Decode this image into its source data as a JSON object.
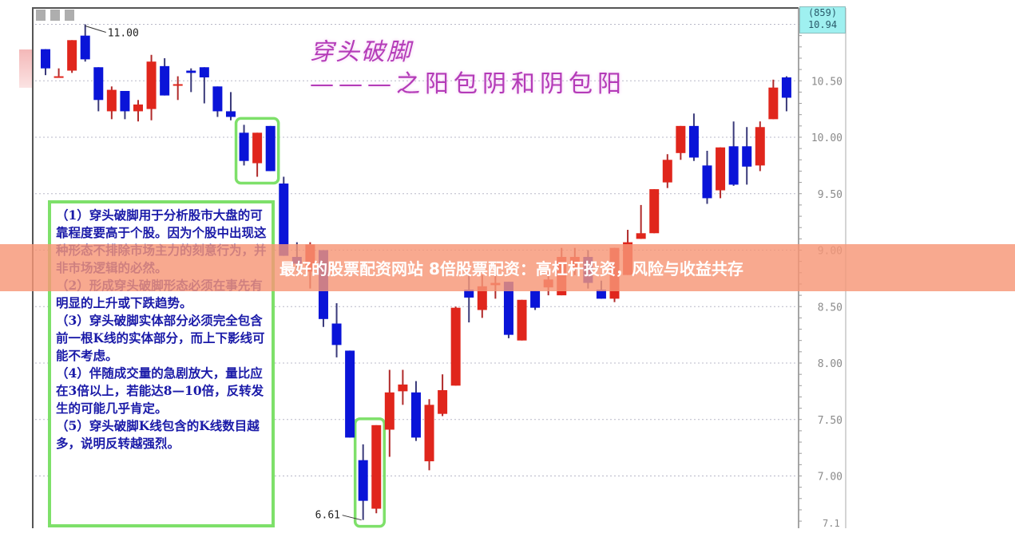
{
  "banner": {
    "text": "最好的股票配资网站 8倍股票配资：高杠杆投资，风险与收益共存"
  },
  "title": {
    "line1": "穿头破脚",
    "line2": "———之阳包阴和阴包阳"
  },
  "notes": [
    "（1）穿头破脚用于分析股市大盘的可靠程度要高于个股。因为个股中出现这种形态不排除市场主力的刻意行为，并非市场逻辑的必然。",
    "（2）形成穿头破脚形态必须在事先有明显的上升或下跌趋势。",
    "（3）穿头破脚实体部分必须完全包含前一根K线的实体部分，而上下影线可能不考虑。",
    "（4）伴随成交量的急剧放大，量比应在3倍以上，若能达8—10倍，反转发生的可能几乎肯定。",
    "（5）穿头破脚K线包含的K线数目越多，说明反转越强烈。"
  ],
  "price_box": {
    "line1": "(859)",
    "line2": "10.94"
  },
  "colors": {
    "up": "#e0261c",
    "down": "#0a14d8",
    "highlight": "#7ee06a",
    "title": "#b43bb8",
    "banner": "#f69676"
  },
  "chart_data": {
    "type": "candlestick",
    "y_axis": {
      "position": "right",
      "range": [
        6.6,
        11.0
      ],
      "ticks": [
        "10.50",
        "10.00",
        "9.50",
        "9.00",
        "8.50",
        "8.00",
        "7.50",
        "7.00"
      ],
      "partial_bottom_tick": "7.1"
    },
    "grid": "horizontal dotted",
    "annotations": [
      {
        "text": "11.00",
        "price": 11.0,
        "candle": 4
      },
      {
        "text": "6.61",
        "price": 6.61,
        "candle": 25
      }
    ],
    "highlighted_groups": [
      [
        16,
        18
      ],
      [
        25,
        26
      ]
    ],
    "candles": [
      {
        "o": 10.78,
        "c": 10.61,
        "h": 10.78,
        "l": 10.55
      },
      {
        "o": 10.54,
        "c": 10.54,
        "h": 10.61,
        "l": 10.54
      },
      {
        "o": 10.59,
        "c": 10.86,
        "h": 10.86,
        "l": 10.57
      },
      {
        "o": 10.9,
        "c": 10.69,
        "h": 11.0,
        "l": 10.67
      },
      {
        "o": 10.62,
        "c": 10.33,
        "h": 10.62,
        "l": 10.23
      },
      {
        "o": 10.23,
        "c": 10.42,
        "h": 10.45,
        "l": 10.16
      },
      {
        "o": 10.41,
        "c": 10.23,
        "h": 10.41,
        "l": 10.16
      },
      {
        "o": 10.23,
        "c": 10.29,
        "h": 10.33,
        "l": 10.14
      },
      {
        "o": 10.25,
        "c": 10.67,
        "h": 10.73,
        "l": 10.15
      },
      {
        "o": 10.63,
        "c": 10.37,
        "h": 10.7,
        "l": 10.37
      },
      {
        "o": 10.46,
        "c": 10.47,
        "h": 10.54,
        "l": 10.33
      },
      {
        "o": 10.59,
        "c": 10.57,
        "h": 10.61,
        "l": 10.4
      },
      {
        "o": 10.62,
        "c": 10.53,
        "h": 10.62,
        "l": 10.3
      },
      {
        "o": 10.45,
        "c": 10.23,
        "h": 10.45,
        "l": 10.18
      },
      {
        "o": 10.23,
        "c": 10.18,
        "h": 10.4,
        "l": 10.15
      },
      {
        "o": 10.04,
        "c": 9.79,
        "h": 10.11,
        "l": 9.75
      },
      {
        "o": 9.77,
        "c": 10.04,
        "h": 10.04,
        "l": 9.65
      },
      {
        "o": 10.1,
        "c": 9.7,
        "h": 10.1,
        "l": 9.7
      },
      {
        "o": 9.59,
        "c": 8.95,
        "h": 9.65,
        "l": 8.95
      },
      {
        "o": 8.94,
        "c": 8.88,
        "h": 9.07,
        "l": 8.81
      },
      {
        "o": 8.81,
        "c": 9.05,
        "h": 9.07,
        "l": 8.66
      },
      {
        "o": 9.0,
        "c": 8.39,
        "h": 9.0,
        "l": 8.32
      },
      {
        "o": 8.35,
        "c": 8.16,
        "h": 8.53,
        "l": 8.05
      },
      {
        "o": 8.11,
        "c": 7.34,
        "h": 8.11,
        "l": 7.34
      },
      {
        "o": 7.14,
        "c": 6.78,
        "h": 7.28,
        "l": 6.61
      },
      {
        "o": 6.71,
        "c": 7.45,
        "h": 7.45,
        "l": 6.67
      },
      {
        "o": 7.41,
        "c": 7.74,
        "h": 7.94,
        "l": 7.17
      },
      {
        "o": 7.75,
        "c": 7.81,
        "h": 7.94,
        "l": 7.63
      },
      {
        "o": 7.74,
        "c": 7.34,
        "h": 7.84,
        "l": 7.31
      },
      {
        "o": 7.13,
        "c": 7.63,
        "h": 7.68,
        "l": 7.05
      },
      {
        "o": 7.55,
        "c": 7.76,
        "h": 7.9,
        "l": 7.53
      },
      {
        "o": 7.8,
        "c": 8.49,
        "h": 8.5,
        "l": 7.8
      },
      {
        "o": 8.65,
        "c": 8.58,
        "h": 8.78,
        "l": 8.36
      },
      {
        "o": 8.47,
        "c": 8.68,
        "h": 8.78,
        "l": 8.4
      },
      {
        "o": 8.69,
        "c": 8.71,
        "h": 8.78,
        "l": 8.57
      },
      {
        "o": 8.72,
        "c": 8.25,
        "h": 8.72,
        "l": 8.22
      },
      {
        "o": 8.2,
        "c": 8.56,
        "h": 8.56,
        "l": 8.2
      },
      {
        "o": 8.64,
        "c": 8.49,
        "h": 8.64,
        "l": 8.47
      },
      {
        "o": 8.67,
        "c": 8.74,
        "h": 8.81,
        "l": 8.6
      },
      {
        "o": 8.6,
        "c": 8.94,
        "h": 9.02,
        "l": 8.6
      },
      {
        "o": 8.83,
        "c": 8.94,
        "h": 9.02,
        "l": 8.78
      },
      {
        "o": 8.94,
        "c": 8.71,
        "h": 9.0,
        "l": 8.66
      },
      {
        "o": 8.65,
        "c": 8.57,
        "h": 8.73,
        "l": 8.57
      },
      {
        "o": 8.57,
        "c": 9.02,
        "h": 9.02,
        "l": 8.54
      },
      {
        "o": 8.78,
        "c": 9.07,
        "h": 9.18,
        "l": 8.78
      },
      {
        "o": 9.1,
        "c": 9.15,
        "h": 9.4,
        "l": 9.1
      },
      {
        "o": 9.15,
        "c": 9.54,
        "h": 9.54,
        "l": 9.15
      },
      {
        "o": 9.6,
        "c": 9.8,
        "h": 9.85,
        "l": 9.55
      },
      {
        "o": 9.86,
        "c": 10.1,
        "h": 10.1,
        "l": 9.8
      },
      {
        "o": 10.1,
        "c": 9.82,
        "h": 10.21,
        "l": 9.79
      },
      {
        "o": 9.75,
        "c": 9.46,
        "h": 9.88,
        "l": 9.41
      },
      {
        "o": 9.53,
        "c": 9.91,
        "h": 9.91,
        "l": 9.46
      },
      {
        "o": 9.92,
        "c": 9.58,
        "h": 10.14,
        "l": 9.57
      },
      {
        "o": 9.92,
        "c": 9.74,
        "h": 10.09,
        "l": 9.58
      },
      {
        "o": 9.75,
        "c": 10.09,
        "h": 10.14,
        "l": 9.7
      },
      {
        "o": 10.16,
        "c": 10.44,
        "h": 10.51,
        "l": 10.16
      },
      {
        "o": 10.53,
        "c": 10.35,
        "h": 10.54,
        "l": 10.23
      }
    ]
  }
}
